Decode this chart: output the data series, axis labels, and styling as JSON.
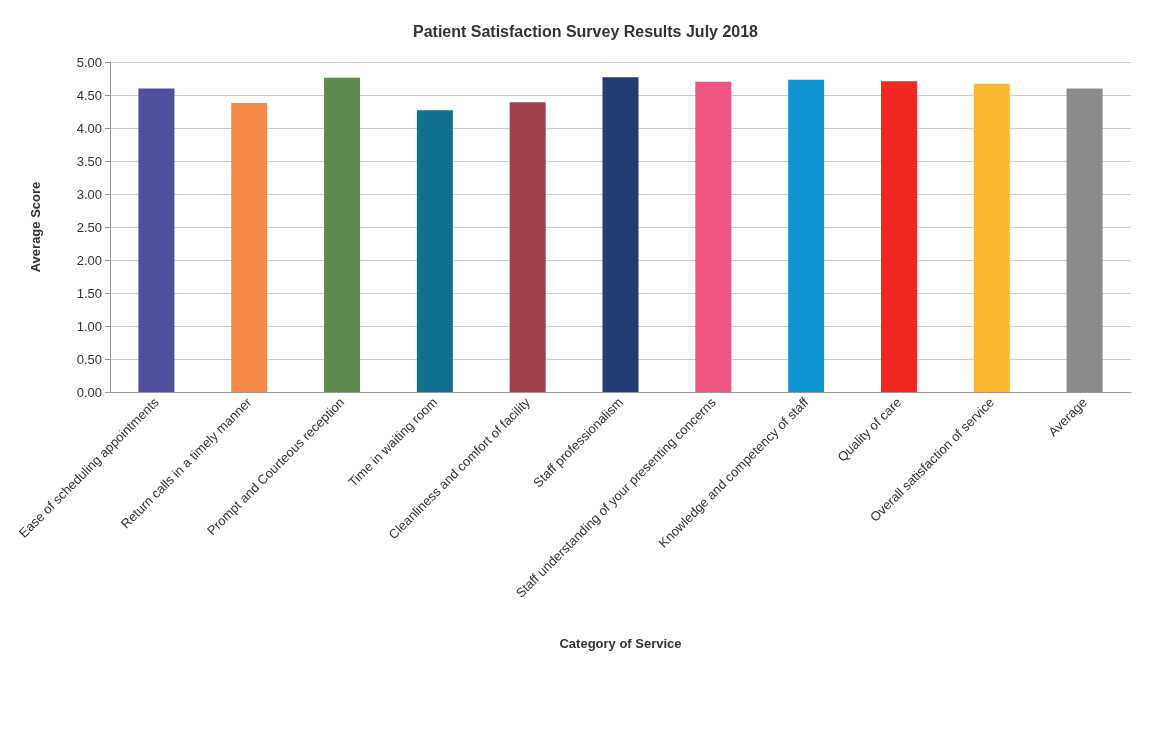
{
  "chart_data": {
    "type": "bar",
    "title": "Patient Satisfaction Survey Results July 2018",
    "xlabel": "Category of Service",
    "ylabel": "Average Score",
    "categories": [
      "Ease of scheduling appointments",
      "Return calls in a timely manner",
      "Prompt and Courteous reception",
      "Time in waiting room",
      "Cleanliness and comfort of facility",
      "Staff professionalism",
      "Staff understanding of your presenting concerns",
      "Knowledge and competency of staff",
      "Quality of care",
      "Overall satisfaction of service",
      "Average"
    ],
    "values": [
      4.6,
      4.38,
      4.76,
      4.27,
      4.39,
      4.77,
      4.7,
      4.73,
      4.71,
      4.67,
      4.6
    ],
    "colors": [
      "#4f4f9b",
      "#f6894a",
      "#5e8c4f",
      "#11708f",
      "#a0404b",
      "#243a72",
      "#f25482",
      "#1196d4",
      "#ee2a1e",
      "#fbb731",
      "#8a898c"
    ],
    "ylim": [
      0,
      5
    ],
    "yticks": [
      {
        "value": 0,
        "label": "0.00"
      },
      {
        "value": 0.5,
        "label": "0.50"
      },
      {
        "value": 1,
        "label": "1.00"
      },
      {
        "value": 1.5,
        "label": "1.50"
      },
      {
        "value": 2,
        "label": "2.00"
      },
      {
        "value": 2.5,
        "label": "2.50"
      },
      {
        "value": 3,
        "label": "3.00"
      },
      {
        "value": 3.5,
        "label": "3.50"
      },
      {
        "value": 4,
        "label": "4.00"
      },
      {
        "value": 4.5,
        "label": "4.50"
      },
      {
        "value": 5,
        "label": "5.00"
      }
    ],
    "grid": true
  }
}
